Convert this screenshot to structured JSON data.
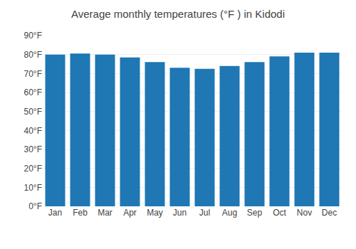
{
  "chart_data": {
    "type": "bar",
    "title": "Average monthly temperatures (°F ) in Kidodi",
    "categories": [
      "Jan",
      "Feb",
      "Mar",
      "Apr",
      "May",
      "Jun",
      "Jul",
      "Aug",
      "Sep",
      "Oct",
      "Nov",
      "Dec"
    ],
    "values": [
      80,
      80.5,
      80,
      78.5,
      76,
      73,
      72.5,
      74,
      76,
      79,
      81,
      81
    ],
    "ylim": [
      0,
      90
    ],
    "yticks": [
      {
        "value": 0,
        "label": "0°F"
      },
      {
        "value": 10,
        "label": "10°F"
      },
      {
        "value": 20,
        "label": "20°F"
      },
      {
        "value": 30,
        "label": "30°F"
      },
      {
        "value": 40,
        "label": "40°F"
      },
      {
        "value": 50,
        "label": "50°F"
      },
      {
        "value": 60,
        "label": "60°F"
      },
      {
        "value": 70,
        "label": "70°F"
      },
      {
        "value": 80,
        "label": "80°F"
      },
      {
        "value": 90,
        "label": "90°F"
      }
    ],
    "grid": true
  }
}
